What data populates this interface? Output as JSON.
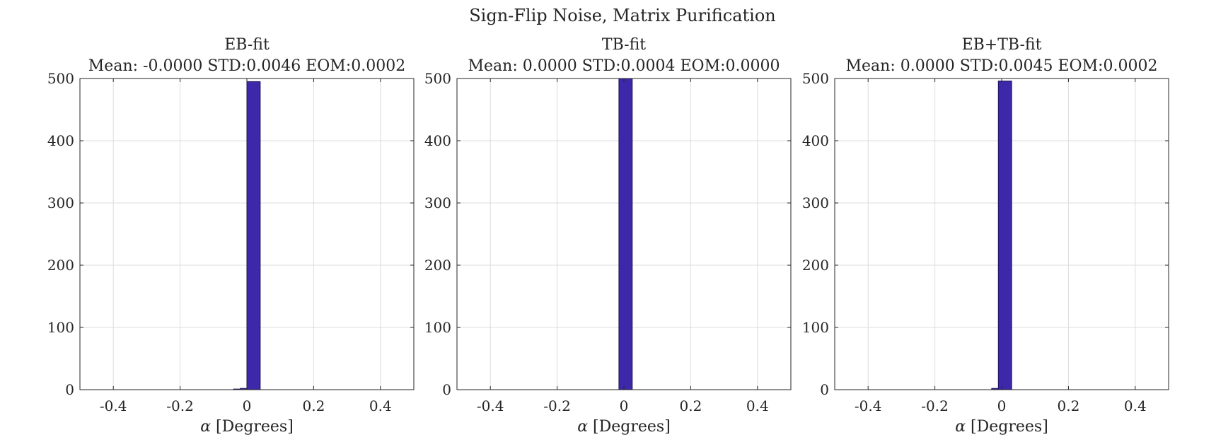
{
  "figure_title": "Sign-Flip Noise, Matrix Purification",
  "colors": {
    "bar_fill": "#3c28a8",
    "bar_edge": "#1e1458",
    "grid": "#dcdcdc",
    "axis": "#262626"
  },
  "chart_data": [
    {
      "type": "bar",
      "title": "EB-fit",
      "subtitle": "Mean: -0.0000 STD:0.0046 EOM:0.0002",
      "xlabel_symbol": "α",
      "xlabel": "[Degrees]",
      "ylabel": "",
      "xlim": [
        -0.5,
        0.5
      ],
      "ylim": [
        0,
        500
      ],
      "xticks": [
        -0.4,
        -0.2,
        0,
        0.2,
        0.4
      ],
      "xtick_labels": [
        "-0.4",
        "-0.2",
        "0",
        "0.2",
        "0.4"
      ],
      "yticks": [
        0,
        100,
        200,
        300,
        400,
        500
      ],
      "ytick_labels": [
        "0",
        "100",
        "200",
        "300",
        "400",
        "500"
      ],
      "grid": true,
      "bars": [
        {
          "x0": -0.04,
          "x1": -0.02,
          "value": 1
        },
        {
          "x0": -0.02,
          "x1": 0.0,
          "value": 2
        },
        {
          "x0": 0.0,
          "x1": 0.04,
          "value": 495
        }
      ]
    },
    {
      "type": "bar",
      "title": "TB-fit",
      "subtitle": "Mean: 0.0000 STD:0.0004 EOM:0.0000",
      "xlabel_symbol": "α",
      "xlabel": "[Degrees]",
      "ylabel": "",
      "xlim": [
        -0.5,
        0.5
      ],
      "ylim": [
        0,
        500
      ],
      "xticks": [
        -0.4,
        -0.2,
        0,
        0.2,
        0.4
      ],
      "xtick_labels": [
        "-0.4",
        "-0.2",
        "0",
        "0.2",
        "0.4"
      ],
      "yticks": [
        0,
        100,
        200,
        300,
        400,
        500
      ],
      "ytick_labels": [
        "0",
        "100",
        "200",
        "300",
        "400",
        "500"
      ],
      "grid": true,
      "bars": [
        {
          "x0": -0.015,
          "x1": 0.025,
          "value": 500
        }
      ]
    },
    {
      "type": "bar",
      "title": "EB+TB-fit",
      "subtitle": "Mean: 0.0000 STD:0.0045 EOM:0.0002",
      "xlabel_symbol": "α",
      "xlabel": "[Degrees]",
      "ylabel": "",
      "xlim": [
        -0.5,
        0.5
      ],
      "ylim": [
        0,
        500
      ],
      "xticks": [
        -0.4,
        -0.2,
        0,
        0.2,
        0.4
      ],
      "xtick_labels": [
        "-0.4",
        "-0.2",
        "0",
        "0.2",
        "0.4"
      ],
      "yticks": [
        0,
        100,
        200,
        300,
        400,
        500
      ],
      "ytick_labels": [
        "0",
        "100",
        "200",
        "300",
        "400",
        "500"
      ],
      "grid": true,
      "bars": [
        {
          "x0": -0.03,
          "x1": -0.01,
          "value": 2
        },
        {
          "x0": -0.01,
          "x1": 0.03,
          "value": 496
        }
      ]
    }
  ]
}
